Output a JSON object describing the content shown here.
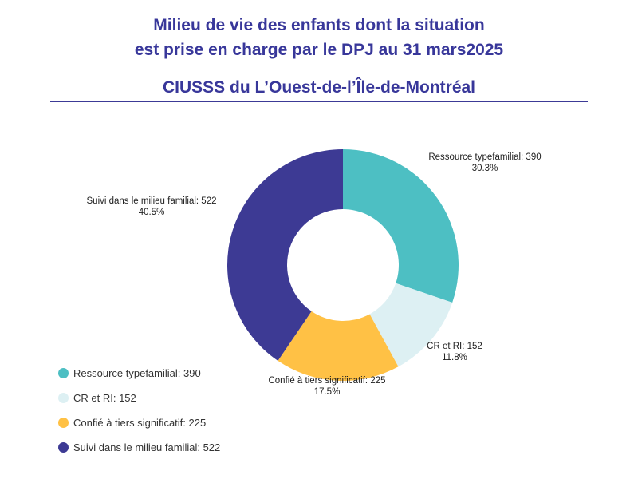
{
  "chart_data": {
    "type": "pie",
    "variant": "donut",
    "title": "Milieu de vie des enfants dont la situation est prise en charge par le DPJ au 31 mars2025",
    "title_lines": [
      "Milieu de vie des enfants dont la situation",
      "est prise en charge par le DPJ au 31 mars2025"
    ],
    "subtitle": "CIUSSS du L’Ouest-de-l’Île-de-Montréal",
    "legend_position": "bottom-left",
    "slices": [
      {
        "label": "Ressource typefamilial",
        "value": 390,
        "percent": "30.3%",
        "color": "#4dbfc3",
        "legend": "Ressource typefamilial: 390",
        "data_label": "Ressource typefamilial: 390"
      },
      {
        "label": "CR et RI",
        "value": 152,
        "percent": "11.8%",
        "color": "#ddf0f3",
        "legend": "CR et RI: 152",
        "data_label": "CR et RI: 152"
      },
      {
        "label": "Confié à tiers significatif",
        "value": 225,
        "percent": "17.5%",
        "color": "#ffc145",
        "legend": "Confié à tiers significatif: 225",
        "data_label": "Confié à tiers significatif: 225"
      },
      {
        "label": "Suivi dans le milieu familial",
        "value": 522,
        "percent": "40.5%",
        "color": "#3d3a94",
        "legend": "Suivi dans le milieu familial: 522",
        "data_label": "Suivi dans le milieu familial: 522"
      }
    ]
  }
}
